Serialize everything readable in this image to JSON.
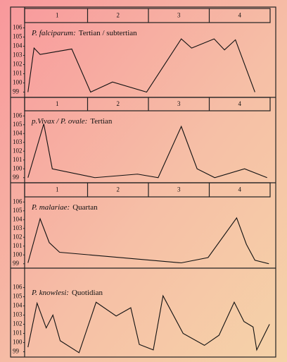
{
  "chart_data": [
    {
      "type": "line",
      "species": "P. falciparum:",
      "fever": "Tertian / subtertian",
      "days": [
        "1",
        "2",
        "3",
        "4"
      ],
      "x": [
        0.02,
        0.12,
        0.22,
        0.74,
        1.05,
        1.41,
        1.97,
        2.54,
        2.71,
        3.08,
        3.25,
        3.43,
        3.75
      ],
      "values": [
        99,
        103.8,
        103.1,
        103.7,
        99,
        100.1,
        99,
        104.8,
        103.8,
        104.8,
        103.6,
        104.7,
        99
      ],
      "xlim": [
        0,
        4
      ],
      "ylim": [
        98.5,
        106.5
      ],
      "yticks": [
        99,
        100,
        101,
        102,
        103,
        104,
        105,
        106
      ],
      "color": "#111111"
    },
    {
      "type": "line",
      "species": "p.Vivax / P. ovale:",
      "fever": "Tertian",
      "days": [
        "1",
        "2",
        "3",
        "4"
      ],
      "x": [
        0.02,
        0.28,
        0.42,
        1.12,
        1.82,
        2.16,
        2.54,
        2.8,
        3.09,
        3.58,
        3.95
      ],
      "values": [
        99,
        105.1,
        100,
        99,
        99.4,
        99,
        104.8,
        100,
        99,
        100,
        99
      ],
      "xlim": [
        0,
        4
      ],
      "ylim": [
        98.5,
        106.5
      ],
      "yticks": [
        99,
        100,
        101,
        102,
        103,
        104,
        105,
        106
      ],
      "color": "#111111"
    },
    {
      "type": "line",
      "species": "P. malariae:",
      "fever": "Quartan",
      "days": [
        "1",
        "2",
        "3",
        "4"
      ],
      "x": [
        0.02,
        0.22,
        0.37,
        0.54,
        2.54,
        2.98,
        3.45,
        3.61,
        3.75,
        3.98
      ],
      "values": [
        99.1,
        104.1,
        101.4,
        100.3,
        99.1,
        99.7,
        104.2,
        101.2,
        99.4,
        99
      ],
      "xlim": [
        0,
        4
      ],
      "ylim": [
        98.5,
        106.5
      ],
      "yticks": [
        99,
        100,
        101,
        102,
        103,
        104,
        105,
        106
      ],
      "color": "#111111"
    },
    {
      "type": "line",
      "species": "P. knowlesi:",
      "fever": "Quotidian",
      "x": [
        0.02,
        0.17,
        0.32,
        0.43,
        0.55,
        0.86,
        1.14,
        1.47,
        1.71,
        1.85,
        2.08,
        2.24,
        2.57,
        2.92,
        3.16,
        3.41,
        3.57,
        3.72,
        3.78,
        3.99
      ],
      "values": [
        99.5,
        104.3,
        101.6,
        103,
        100.2,
        98.9,
        104.4,
        102.9,
        103.8,
        99.8,
        99.2,
        105.1,
        101,
        99.7,
        100.8,
        104.4,
        102.3,
        101.7,
        99.2,
        102
      ],
      "xlim": [
        0,
        4
      ],
      "ylim": [
        98.5,
        106.5
      ],
      "yticks": [
        99,
        100,
        101,
        102,
        103,
        104,
        105,
        106
      ],
      "color": "#111111"
    }
  ]
}
